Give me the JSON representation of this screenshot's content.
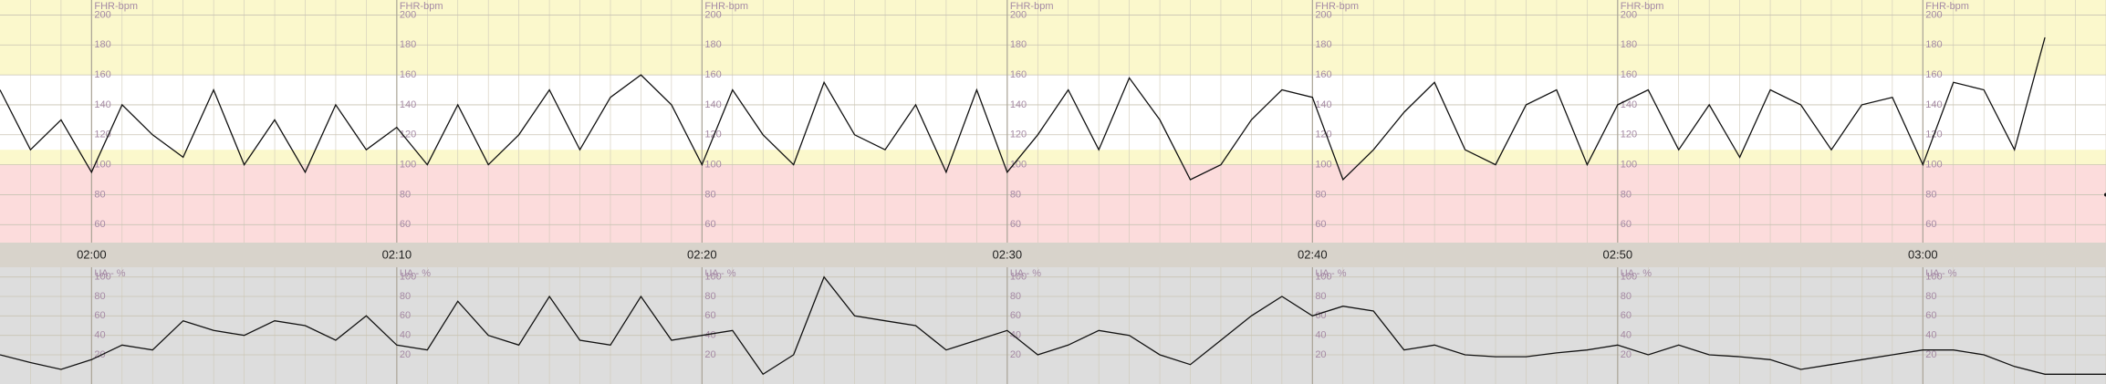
{
  "chart_data": [
    {
      "type": "line",
      "axis_label": "FHR-bpm",
      "x": [
        117,
        118,
        119,
        120,
        121,
        122,
        123,
        124,
        125,
        126,
        127,
        128,
        129,
        130,
        131,
        132,
        133,
        134,
        135,
        136,
        137,
        138,
        139,
        140,
        141,
        142,
        143,
        144,
        145,
        146,
        147,
        148,
        149,
        150,
        151,
        152,
        153,
        154,
        155,
        156,
        157,
        158,
        159,
        160,
        161,
        162,
        163,
        164,
        165,
        166,
        167,
        168,
        169,
        170,
        171,
        172,
        173,
        174,
        175,
        176,
        177,
        178,
        179,
        180,
        181,
        182,
        183,
        184,
        185,
        186
      ],
      "values": [
        150,
        110,
        130,
        95,
        140,
        120,
        105,
        150,
        100,
        130,
        95,
        140,
        110,
        125,
        100,
        140,
        100,
        120,
        150,
        110,
        145,
        160,
        140,
        100,
        150,
        120,
        100,
        155,
        120,
        110,
        140,
        95,
        150,
        95,
        120,
        150,
        110,
        158,
        130,
        90,
        100,
        130,
        150,
        145,
        90,
        110,
        135,
        155,
        110,
        100,
        140,
        150,
        100,
        140,
        150,
        110,
        140,
        105,
        150,
        140,
        110,
        140,
        145,
        100,
        155,
        150,
        110,
        185,
        null,
        80
      ],
      "color": "#111111",
      "xlim": [
        117,
        186
      ],
      "xticks": [
        {
          "value": 120,
          "label": "02:00"
        },
        {
          "value": 130,
          "label": "02:10"
        },
        {
          "value": 140,
          "label": "02:20"
        },
        {
          "value": 150,
          "label": "02:30"
        },
        {
          "value": 160,
          "label": "02:40"
        },
        {
          "value": 170,
          "label": "02:50"
        },
        {
          "value": 180,
          "label": "03:00"
        }
      ],
      "ylim": [
        48,
        210
      ],
      "yticks": [
        200,
        180,
        160,
        140,
        120,
        100,
        80,
        60
      ],
      "bands": [
        {
          "from": 160,
          "to": 210,
          "color": "#fbf8cc"
        },
        {
          "from": 110,
          "to": 160,
          "color": "#ffffff"
        },
        {
          "from": 100,
          "to": 110,
          "color": "#fbf8cc"
        },
        {
          "from": 48,
          "to": 100,
          "color": "#fcdcdc"
        }
      ],
      "grid": true
    },
    {
      "type": "line",
      "axis_label": "UA - %",
      "x": [
        117,
        118,
        119,
        120,
        121,
        122,
        123,
        124,
        125,
        126,
        127,
        128,
        129,
        130,
        131,
        132,
        133,
        134,
        135,
        136,
        137,
        138,
        139,
        140,
        141,
        142,
        143,
        144,
        145,
        146,
        147,
        148,
        149,
        150,
        151,
        152,
        153,
        154,
        155,
        156,
        157,
        158,
        159,
        160,
        161,
        162,
        163,
        164,
        165,
        166,
        167,
        168,
        169,
        170,
        171,
        172,
        173,
        174,
        175,
        176,
        177,
        178,
        179,
        180,
        181,
        182,
        183,
        184,
        185,
        186
      ],
      "values": [
        20,
        12,
        5,
        15,
        30,
        25,
        55,
        45,
        40,
        55,
        50,
        35,
        60,
        30,
        25,
        75,
        40,
        30,
        80,
        35,
        30,
        80,
        35,
        40,
        45,
        0,
        20,
        100,
        60,
        55,
        50,
        25,
        35,
        45,
        20,
        30,
        45,
        40,
        20,
        10,
        35,
        60,
        80,
        60,
        70,
        65,
        25,
        30,
        20,
        18,
        18,
        22,
        25,
        30,
        20,
        30,
        20,
        18,
        15,
        5,
        10,
        15,
        20,
        25,
        25,
        20,
        8,
        0,
        0,
        0
      ],
      "color": "#111111",
      "xlim": [
        117,
        186
      ],
      "ylim": [
        -10,
        110
      ],
      "yticks": [
        100,
        80,
        60,
        40,
        20
      ],
      "grid": true
    }
  ]
}
